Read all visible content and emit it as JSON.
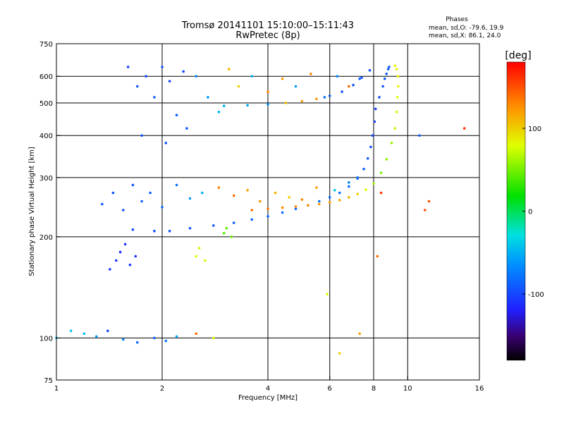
{
  "chart_data": {
    "type": "scatter",
    "title": "Tromsø 20141101 15:10:00–15:11:43",
    "subtitle": "RwPretec (8p)",
    "stats": {
      "heading": "Phases",
      "line1": "mean, sd,O: -79.6, 19.9",
      "line2": "mean, sd,X:  86.1, 24.0"
    },
    "xlabel": "Frequency [MHz]",
    "ylabel": "Stationary phase Virtual Height [km]",
    "x_scale": "log",
    "y_scale": "log",
    "xlim": [
      1,
      16
    ],
    "ylim": [
      75,
      750
    ],
    "x_ticks": [
      "1",
      "2",
      "4",
      "6",
      "8",
      "10",
      "16"
    ],
    "x_tick_values": [
      1,
      2,
      4,
      6,
      8,
      10,
      16
    ],
    "y_ticks": [
      "75",
      "100",
      "200",
      "300",
      "400",
      "500",
      "600",
      "750"
    ],
    "y_tick_values": [
      75,
      100,
      200,
      300,
      400,
      500,
      600,
      750
    ],
    "grid_x": [
      2,
      4,
      6,
      8,
      10
    ],
    "grid_y": [
      100,
      200,
      300,
      400,
      500,
      600
    ],
    "colorbar": {
      "label": "[deg]",
      "range": [
        -180,
        180
      ],
      "tick_labels": [
        "100",
        "0",
        "-100"
      ],
      "tick_values": [
        100,
        0,
        -100
      ],
      "colormap": "rainbow"
    },
    "series": [
      {
        "x": [
          1.65,
          1.9,
          2.1,
          2.4,
          2.8,
          3.2,
          3.6,
          4.0,
          4.4,
          4.8,
          5.2,
          5.6,
          6.0,
          6.4,
          6.8,
          7.2,
          7.5,
          7.7,
          7.85,
          7.95,
          8.05
        ],
        "y": [
          210,
          208,
          208,
          212,
          216,
          220,
          225,
          230,
          236,
          242,
          248,
          255,
          262,
          270,
          282,
          298,
          318,
          342,
          370,
          400,
          440
        ],
        "phase": [
          -95,
          -95,
          -93,
          -92,
          -90,
          -88,
          -86,
          -85,
          -84,
          -83,
          -82,
          -81,
          -80,
          -80,
          -82,
          -85,
          -88,
          -90,
          -95,
          -100,
          -105
        ]
      },
      {
        "x": [
          8.1,
          8.3,
          8.5,
          8.6,
          8.7,
          8.8,
          8.85
        ],
        "y": [
          480,
          520,
          560,
          590,
          610,
          630,
          640
        ],
        "phase": [
          -105,
          -100,
          -95,
          -92,
          -90,
          -90,
          -90
        ]
      },
      {
        "x": [
          3.6,
          4.0,
          4.4,
          4.8,
          5.2,
          5.6,
          6.0,
          6.4,
          6.8,
          7.2,
          7.6,
          8.0,
          8.4,
          8.7,
          9.0,
          9.2,
          9.3,
          9.35,
          9.4,
          9.38,
          9.3,
          9.2
        ],
        "y": [
          240,
          242,
          244,
          246,
          248,
          250,
          253,
          257,
          262,
          268,
          276,
          288,
          310,
          340,
          380,
          420,
          470,
          520,
          560,
          600,
          630,
          645
        ],
        "phase": [
          140,
          135,
          130,
          128,
          125,
          122,
          120,
          115,
          110,
          100,
          80,
          60,
          50,
          55,
          60,
          70,
          75,
          80,
          85,
          85,
          85,
          85
        ]
      },
      {
        "x": [
          3.0,
          3.5,
          4.0,
          4.5,
          5.0,
          5.5,
          6.0,
          6.5,
          7.0,
          7.4,
          7.8
        ],
        "y": [
          490,
          492,
          495,
          500,
          506,
          514,
          525,
          540,
          565,
          595,
          625
        ],
        "phase": [
          -50,
          -55,
          -65,
          110,
          120,
          125,
          -90,
          -95,
          -95,
          -95,
          -95
        ]
      },
      {
        "x": [
          1.6,
          1.7,
          1.8,
          1.9,
          2.0,
          2.1,
          2.2,
          2.3,
          2.5,
          2.7,
          2.9,
          3.1,
          3.3,
          3.6,
          4.0,
          4.4,
          4.8,
          5.3,
          5.8,
          6.3,
          6.8,
          7.3,
          1.75,
          2.05,
          2.35
        ],
        "y": [
          640,
          560,
          600,
          520,
          640,
          580,
          460,
          620,
          600,
          520,
          470,
          630,
          560,
          600,
          540,
          590,
          560,
          610,
          520,
          600,
          560,
          590,
          400,
          380,
          420
        ],
        "phase": [
          -100,
          -95,
          -100,
          -90,
          -95,
          -100,
          -90,
          -100,
          -70,
          -60,
          -50,
          110,
          100,
          -50,
          130,
          120,
          -60,
          130,
          -80,
          -70,
          140,
          -90,
          -95,
          -92,
          -90
        ]
      },
      {
        "x": [
          1.35,
          1.45,
          1.55,
          1.65,
          1.75,
          1.85,
          2.0,
          2.2,
          2.4,
          2.6,
          2.9,
          3.2,
          3.5,
          3.8,
          4.2,
          4.6,
          5.0,
          5.5,
          6.2,
          6.8,
          7.2
        ],
        "y": [
          250,
          270,
          240,
          285,
          255,
          270,
          245,
          285,
          260,
          270,
          280,
          265,
          275,
          255,
          270,
          262,
          258,
          280,
          275,
          290,
          300
        ],
        "phase": [
          -90,
          -92,
          -95,
          -95,
          -90,
          -88,
          -85,
          -80,
          -60,
          -50,
          130,
          140,
          120,
          125,
          110,
          100,
          130,
          120,
          -40,
          -70,
          -80
        ]
      },
      {
        "x": [
          1.42,
          1.48,
          1.52,
          1.57,
          1.62,
          1.68
        ],
        "y": [
          160,
          170,
          180,
          190,
          165,
          175
        ],
        "phase": [
          -110,
          -110,
          -115,
          -110,
          -105,
          -108
        ]
      },
      {
        "x": [
          2.5,
          2.55,
          2.65,
          3.0,
          3.05,
          3.15
        ],
        "y": [
          175,
          185,
          170,
          205,
          212,
          200
        ],
        "phase": [
          80,
          85,
          75,
          40,
          45,
          50
        ]
      },
      {
        "x": [
          1.0,
          1.1,
          1.2,
          1.3,
          1.4,
          1.55,
          1.7,
          1.9,
          2.05,
          2.2,
          2.5,
          2.8
        ],
        "y": [
          100,
          105,
          103,
          101,
          105,
          99,
          97,
          100,
          98,
          101,
          103,
          100
        ],
        "phase": [
          -45,
          -40,
          -45,
          -60,
          -100,
          -70,
          -80,
          -90,
          -75,
          -50,
          140,
          80
        ]
      },
      {
        "x": [
          11.2,
          11.5,
          14.5,
          10.8,
          6.4,
          5.9,
          7.3,
          8.2,
          8.4
        ],
        "y": [
          240,
          255,
          420,
          400,
          90,
          135,
          103,
          175,
          270
        ],
        "phase": [
          150,
          150,
          160,
          -90,
          100,
          80,
          120,
          140,
          160
        ]
      }
    ]
  }
}
